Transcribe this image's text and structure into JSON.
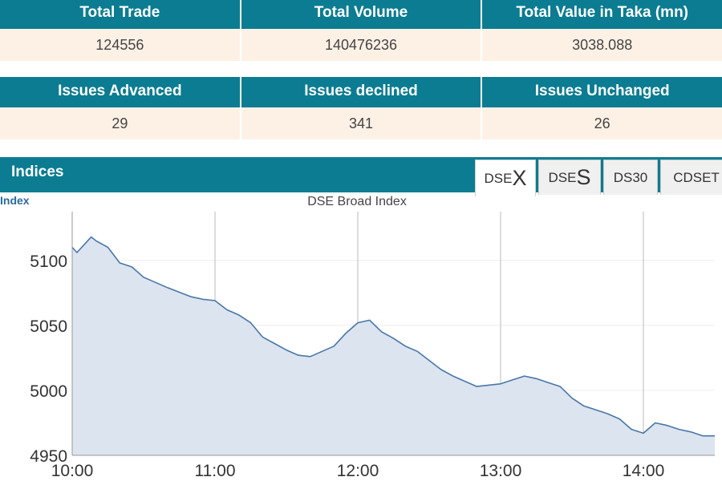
{
  "colors": {
    "teal": "#0b7c91",
    "cream": "#fdf1e6",
    "line": "#4a76a8",
    "fill": "#dbe4ef"
  },
  "stats1": {
    "headers": [
      "Total Trade",
      "Total Volume",
      "Total Value in Taka (mn)"
    ],
    "values": [
      "124556",
      "140476236",
      "3038.088"
    ]
  },
  "stats2": {
    "headers": [
      "Issues Advanced",
      "Issues declined",
      "Issues Unchanged"
    ],
    "values": [
      "29",
      "341",
      "26"
    ]
  },
  "indices": {
    "title": "Indices",
    "tabs": [
      {
        "small": "DSE",
        "big": "X",
        "active": true
      },
      {
        "small": "DSE",
        "big": "S",
        "active": false
      },
      {
        "label": "DS30",
        "active": false
      },
      {
        "label": "CDSET",
        "active": false
      }
    ]
  },
  "chart_data": {
    "type": "area",
    "title": "DSE Broad Index",
    "ylabel": "Index",
    "xlabel": "",
    "ylim": [
      4950,
      5135
    ],
    "yticks": [
      4950,
      5000,
      5050,
      5100
    ],
    "xticks": [
      "10:00",
      "11:00",
      "12:00",
      "13:00",
      "14:00"
    ],
    "x_range_minutes": [
      0,
      270
    ],
    "grid": "vertical-lines",
    "series": [
      {
        "x": [
          0,
          2,
          5,
          8,
          10,
          15,
          20,
          25,
          30,
          40,
          50,
          55,
          60,
          65,
          70,
          75,
          80,
          85,
          90,
          95,
          100,
          105,
          110,
          115,
          120,
          125,
          130,
          135,
          140,
          145,
          150,
          155,
          160,
          165,
          170,
          175,
          180,
          185,
          190,
          195,
          200,
          205,
          210,
          215,
          220,
          225,
          230,
          235,
          240,
          245,
          250,
          255,
          260,
          265,
          270
        ],
        "values": [
          5110,
          5106,
          5112,
          5118,
          5115,
          5110,
          5098,
          5095,
          5087,
          5079,
          5072,
          5070,
          5069,
          5062,
          5058,
          5052,
          5041,
          5036,
          5031,
          5027,
          5026,
          5030,
          5034,
          5044,
          5052,
          5054,
          5045,
          5040,
          5034,
          5030,
          5023,
          5016,
          5011,
          5007,
          5003,
          5004,
          5005,
          5008,
          5011,
          5009,
          5006,
          5003,
          4994,
          4988,
          4985,
          4982,
          4978,
          4970,
          4967,
          4975,
          4973,
          4970,
          4968,
          4965,
          4965
        ]
      }
    ]
  }
}
